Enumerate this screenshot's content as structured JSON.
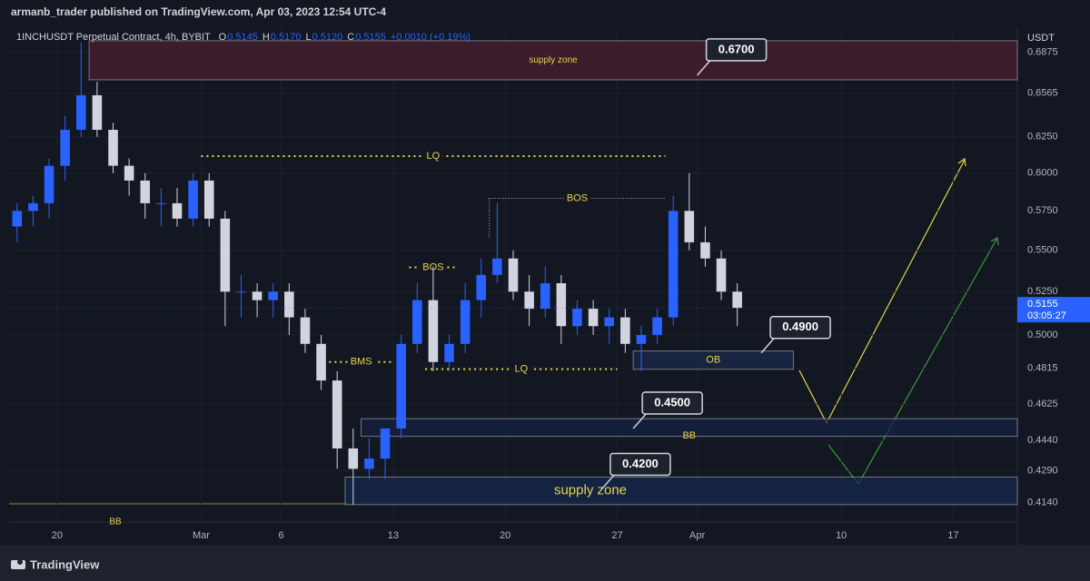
{
  "header": "armanb_trader published on TradingView.com, Apr 03, 2023 12:54 UTC-4",
  "footer": "TradingView",
  "chart_data": {
    "type": "candlestick",
    "legend": {
      "symbol": "1INCHUSDT Perpetual Contract, 4h, BYBIT",
      "items": [
        {
          "name": "O",
          "value": {
            "value": 0.5145,
            "label": "0.5145"
          }
        },
        {
          "name": "H",
          "value": {
            "value": 0.517,
            "label": "0.5170"
          }
        },
        {
          "name": "L",
          "value": {
            "value": 0.512,
            "label": "0.5120"
          }
        },
        {
          "name": "C",
          "value": {
            "value": 0.5155,
            "label": "0.5155"
          }
        }
      ],
      "change": "+0.0010 (+0.19%)"
    },
    "y_axis_label": "USDT",
    "log_scale": true,
    "grid": true,
    "up_color": "#2962ff",
    "down_color": "#d1d4dc",
    "ylim": [
      0.405,
      0.7
    ],
    "yticks": [
      0.6875,
      0.6565,
      {
        "value": 0.625,
        "label": "0.6250"
      },
      {
        "value": 0.6,
        "label": "0.6000"
      },
      {
        "value": 0.575,
        "label": "0.5750"
      },
      {
        "value": 0.55,
        "label": "0.5500"
      },
      {
        "value": 0.525,
        "label": "0.5250"
      },
      {
        "value": 0.5,
        "label": "0.5000"
      },
      0.4815,
      0.4625,
      {
        "value": 0.444,
        "label": "0.4440"
      },
      {
        "value": 0.429,
        "label": "0.4290"
      },
      {
        "value": 0.414,
        "label": "0.4140"
      }
    ],
    "xlim": [
      "2023-02-17",
      "2023-04-21"
    ],
    "xticks": [
      {
        "value": "2023-02-20",
        "label": "20"
      },
      {
        "value": "2023-03-01",
        "label": "Mar"
      },
      {
        "value": "2023-03-06",
        "label": "6"
      },
      {
        "value": "2023-03-13",
        "label": "13"
      },
      {
        "value": "2023-03-20",
        "label": "20"
      },
      {
        "value": "2023-03-27",
        "label": "27"
      },
      {
        "value": "2023-04-01",
        "label": "Apr"
      },
      {
        "value": "2023-04-10",
        "label": "10"
      },
      {
        "value": "2023-04-17",
        "label": "17"
      }
    ],
    "candles": {
      "x": [
        "2023-02-17",
        "2023-02-18",
        "2023-02-19",
        "2023-02-20",
        "2023-02-21",
        "2023-02-22",
        "2023-02-23",
        "2023-02-24",
        "2023-02-25",
        "2023-02-26",
        "2023-02-27",
        "2023-02-28",
        "2023-03-01",
        "2023-03-02",
        "2023-03-03",
        "2023-03-04",
        "2023-03-05",
        "2023-03-06",
        "2023-03-07",
        "2023-03-08",
        "2023-03-09",
        "2023-03-10",
        "2023-03-11",
        "2023-03-12",
        "2023-03-13",
        "2023-03-14",
        "2023-03-15",
        "2023-03-16",
        "2023-03-17",
        "2023-03-18",
        "2023-03-19",
        "2023-03-20",
        "2023-03-21",
        "2023-03-22",
        "2023-03-23",
        "2023-03-24",
        "2023-03-25",
        "2023-03-26",
        "2023-03-27",
        "2023-03-28",
        "2023-03-29",
        "2023-03-30",
        "2023-03-31",
        "2023-04-01",
        "2023-04-02",
        "2023-04-03"
      ],
      "open": [
        0.565,
        0.575,
        0.58,
        0.605,
        0.63,
        0.655,
        0.63,
        0.605,
        0.595,
        0.58,
        0.58,
        0.57,
        0.595,
        0.57,
        0.525,
        0.525,
        0.52,
        0.525,
        0.51,
        0.495,
        0.475,
        0.44,
        0.43,
        0.435,
        0.45,
        0.495,
        0.52,
        0.485,
        0.495,
        0.52,
        0.535,
        0.545,
        0.525,
        0.515,
        0.53,
        0.505,
        0.515,
        0.505,
        0.51,
        0.495,
        0.5,
        0.51,
        0.575,
        0.555,
        0.545,
        0.525
      ],
      "high": [
        0.58,
        0.585,
        0.61,
        0.64,
        0.695,
        0.665,
        0.635,
        0.61,
        0.6,
        0.59,
        0.59,
        0.6,
        0.6,
        0.575,
        0.535,
        0.53,
        0.53,
        0.53,
        0.515,
        0.5,
        0.48,
        0.45,
        0.445,
        0.45,
        0.5,
        0.53,
        0.54,
        0.5,
        0.53,
        0.545,
        0.58,
        0.55,
        0.535,
        0.54,
        0.535,
        0.52,
        0.52,
        0.515,
        0.515,
        0.505,
        0.515,
        0.585,
        0.6,
        0.565,
        0.55,
        0.53
      ],
      "low": [
        0.555,
        0.565,
        0.57,
        0.595,
        0.625,
        0.625,
        0.6,
        0.585,
        0.57,
        0.565,
        0.565,
        0.565,
        0.565,
        0.505,
        0.51,
        0.51,
        0.51,
        0.5,
        0.49,
        0.47,
        0.43,
        0.413,
        0.425,
        0.425,
        0.445,
        0.49,
        0.48,
        0.48,
        0.49,
        0.51,
        0.53,
        0.52,
        0.505,
        0.51,
        0.495,
        0.5,
        0.5,
        0.495,
        0.49,
        0.48,
        0.495,
        0.505,
        0.55,
        0.54,
        0.52,
        0.505
      ],
      "close": [
        0.575,
        0.58,
        0.605,
        0.63,
        0.655,
        0.63,
        0.605,
        0.595,
        0.58,
        0.58,
        0.57,
        0.595,
        0.57,
        0.525,
        0.525,
        0.52,
        0.525,
        0.51,
        0.495,
        0.475,
        0.44,
        0.43,
        0.435,
        0.45,
        0.495,
        0.52,
        0.485,
        0.495,
        0.52,
        0.535,
        0.545,
        0.525,
        0.515,
        0.53,
        0.505,
        0.515,
        0.505,
        0.51,
        0.495,
        0.5,
        0.51,
        0.575,
        0.555,
        0.545,
        0.525,
        0.5155
      ]
    },
    "last_price": 0.5155,
    "countdown": "03:05:27",
    "zones": [
      {
        "label": "supply zone",
        "top": 0.6965,
        "bottom": 0.6665,
        "start": "2023-02-22",
        "end": "2023-04-21",
        "color": "#4a1f2e"
      },
      {
        "label": "OB",
        "top": 0.491,
        "bottom": 0.481,
        "start": "2023-03-28",
        "end": "2023-04-07",
        "color": "#1b2a4a"
      },
      {
        "label": "BB",
        "top": 0.455,
        "bottom": 0.446,
        "start": "2023-03-11",
        "end": "2023-04-21",
        "color": "#162240"
      },
      {
        "label": "supply zone",
        "top": 0.426,
        "bottom": 0.413,
        "start": "2023-03-10",
        "end": "2023-04-21",
        "color": "#16284d"
      }
    ],
    "levels": [
      {
        "label": "LQ",
        "price": 0.6116,
        "start": "2023-03-01",
        "end": "2023-03-30"
      },
      {
        "label": "BOS",
        "price": 0.5832,
        "start": "2023-03-19",
        "end": "2023-03-30"
      },
      {
        "label": "BOS",
        "price": 0.5396,
        "start": "2023-03-14",
        "end": "2023-03-17"
      },
      {
        "label": "BMS",
        "price": 0.485,
        "start": "2023-03-09",
        "end": "2023-03-13"
      },
      {
        "label": "LQ",
        "price": 0.4811,
        "start": "2023-03-15",
        "end": "2023-03-27"
      }
    ],
    "callouts": [
      {
        "value": 0.67,
        "label": "0.6700",
        "date": "2023-04-01"
      },
      {
        "value": 0.49,
        "label": "0.4900",
        "date": "2023-04-05"
      },
      {
        "value": 0.45,
        "label": "0.4500",
        "date": "2023-03-28"
      },
      {
        "value": 0.42,
        "label": "0.4200",
        "date": "2023-03-26"
      }
    ],
    "corner_label": "BB"
  }
}
